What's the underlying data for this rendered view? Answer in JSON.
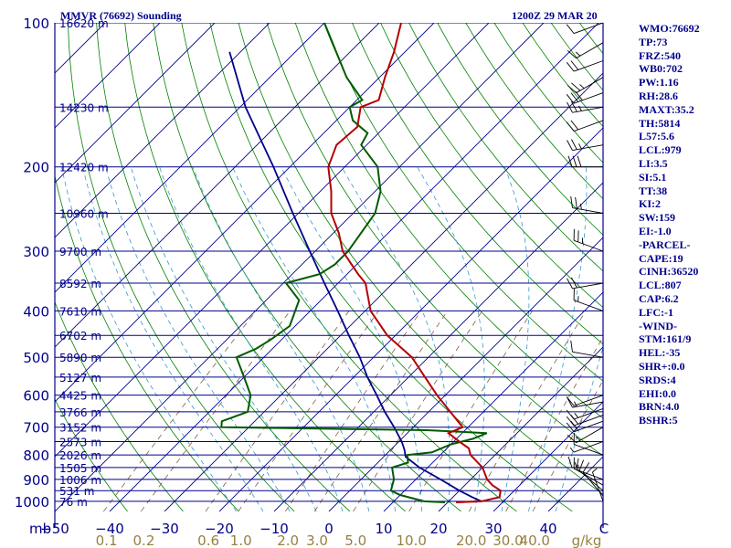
{
  "header": {
    "title": "MMVR (76692) Sounding",
    "datetime": "1200Z 29 MAR 20"
  },
  "indices": [
    "WMO:76692",
    "TP:73",
    "FRZ:540",
    "WB0:702",
    "PW:1.16",
    "RH:28.6",
    "MAXT:35.2",
    "TH:5814",
    "L57:5.6",
    "LCL:979",
    "LI:3.5",
    "SI:5.1",
    "TT:38",
    "KI:2",
    "SW:159",
    "EI:-1.0",
    "-PARCEL-",
    "CAPE:19",
    "CINH:36520",
    "LCL:807",
    "CAP:6.2",
    "LFC:-1",
    "-WIND-",
    "STM:161/9",
    "HEL:-35",
    "SHR+:0.0",
    "SRDS:4",
    "EHI:0.0",
    "BRN:4.0",
    "BSHR:5"
  ],
  "colors": {
    "isobar": "#00008b",
    "isotherm": "#00008b",
    "dry_adiabat": "#008000",
    "moist_adiabat": "#3399cc",
    "mixing_ratio": "#806040",
    "temperature": "#b40000",
    "dewpoint": "#005a00",
    "parcel": "#00008b",
    "label": "#00008b",
    "mixing_label": "#998040",
    "wind": "#000000"
  },
  "chart_data": {
    "type": "skew-t",
    "title": "MMVR (76692) Sounding",
    "pressure_axis": {
      "unit": "mb",
      "ticks": [
        100,
        200,
        300,
        400,
        500,
        600,
        700,
        800,
        900,
        1000
      ]
    },
    "temperature_axis": {
      "ticks": [
        -50,
        -40,
        -30,
        -20,
        -10,
        0,
        10,
        20,
        30,
        40
      ],
      "tick_labels": [
        "−50",
        "−40",
        "−30",
        "−20",
        "−10",
        "0",
        "10",
        "20",
        "30",
        "40"
      ],
      "end_label": "C",
      "range": [
        -50,
        50
      ]
    },
    "mixing_ratio_axis": {
      "values": [
        0.1,
        0.2,
        0.6,
        1.0,
        2.0,
        3.0,
        5.0,
        10.0,
        20.0,
        30.0,
        40.0
      ],
      "labels": [
        "0.1",
        "0.2",
        "0.6",
        "1.0",
        "2.0",
        "3.0",
        "5.0",
        "10.0",
        "20.0",
        "30.0",
        "40.0"
      ],
      "unit": "g/kg"
    },
    "height_levels": [
      {
        "p": 100,
        "label": "16620 m"
      },
      {
        "p": 150,
        "label": "14230 m"
      },
      {
        "p": 200,
        "label": "12420 m"
      },
      {
        "p": 250,
        "label": "10960 m"
      },
      {
        "p": 300,
        "label": "9700 m"
      },
      {
        "p": 350,
        "label": "8592 m"
      },
      {
        "p": 400,
        "label": "7610 m"
      },
      {
        "p": 450,
        "label": "6702 m"
      },
      {
        "p": 500,
        "label": "5890 m"
      },
      {
        "p": 550,
        "label": "5127 m"
      },
      {
        "p": 600,
        "label": "4425 m"
      },
      {
        "p": 650,
        "label": "3766 m"
      },
      {
        "p": 700,
        "label": "3152 m"
      },
      {
        "p": 750,
        "label": "2573 m"
      },
      {
        "p": 800,
        "label": "2026 m"
      },
      {
        "p": 850,
        "label": "1505 m"
      },
      {
        "p": 900,
        "label": "1006 m"
      },
      {
        "p": 950,
        "label": "531 m"
      },
      {
        "p": 1000,
        "label": "76 m"
      }
    ],
    "temperature_profile": {
      "p": [
        1005,
        1000,
        980,
        950,
        925,
        900,
        850,
        800,
        775,
        750,
        720,
        700,
        660,
        600,
        550,
        500,
        450,
        400,
        350,
        335,
        300,
        275,
        250,
        225,
        200,
        180,
        165,
        150,
        145,
        130,
        115,
        100
      ],
      "t": [
        21.5,
        26.0,
        28.5,
        27.5,
        25.0,
        23.0,
        20.0,
        15.5,
        14.0,
        11.0,
        7.5,
        9.0,
        5.0,
        -1.5,
        -7.0,
        -13.0,
        -21.5,
        -29.0,
        -35.0,
        -38.0,
        -45.0,
        -49.0,
        -54.0,
        -58.0,
        -63.0,
        -65.5,
        -65.0,
        -68.0,
        -66.0,
        -69.0,
        -72.0,
        -76.0
      ]
    },
    "dewpoint_profile": {
      "p": [
        1005,
        1000,
        970,
        950,
        900,
        850,
        830,
        800,
        790,
        760,
        740,
        720,
        710,
        700,
        680,
        650,
        600,
        550,
        500,
        480,
        460,
        430,
        380,
        350,
        335,
        320,
        300,
        250,
        225,
        200,
        180,
        170,
        160,
        150,
        145,
        130,
        100
      ],
      "t": [
        19.5,
        15.5,
        10.0,
        7.5,
        6.0,
        3.5,
        5.5,
        4.0,
        8.0,
        10.0,
        13.0,
        14.5,
        3.0,
        -35.0,
        -36.0,
        -33.0,
        -35.5,
        -40.0,
        -45.0,
        -43.0,
        -42.0,
        -41.0,
        -44.0,
        -49.5,
        -45.0,
        -44.0,
        -44.0,
        -46.0,
        -49.0,
        -54.0,
        -61.0,
        -62.0,
        -67.0,
        -70.0,
        -69.0,
        -76.0,
        -90.0
      ]
    },
    "parcel_profile": {
      "p": [
        1000,
        980,
        950,
        900,
        850,
        807,
        780,
        750,
        700,
        650,
        600,
        550,
        500,
        450,
        400,
        350,
        300,
        250,
        200,
        150,
        115
      ],
      "t": [
        26.0,
        23.5,
        20.0,
        14.5,
        8.5,
        4.0,
        2.5,
        0.5,
        -3.5,
        -8.0,
        -12.5,
        -17.5,
        -22.5,
        -28.5,
        -35.0,
        -42.5,
        -51.0,
        -61.0,
        -73.0,
        -89.0,
        -102.0
      ]
    },
    "wind_barbs": [
      {
        "p": 1000,
        "dir": 340,
        "spd": 5
      },
      {
        "p": 975,
        "dir": 320,
        "spd": 10
      },
      {
        "p": 950,
        "dir": 310,
        "spd": 10
      },
      {
        "p": 925,
        "dir": 300,
        "spd": 10
      },
      {
        "p": 900,
        "dir": 290,
        "spd": 15
      },
      {
        "p": 850,
        "dir": 270,
        "spd": 15
      },
      {
        "p": 800,
        "dir": 290,
        "spd": 10
      },
      {
        "p": 750,
        "dir": 250,
        "spd": 5
      },
      {
        "p": 700,
        "dir": 240,
        "spd": 15
      },
      {
        "p": 680,
        "dir": 250,
        "spd": 20
      },
      {
        "p": 660,
        "dir": 250,
        "spd": 20
      },
      {
        "p": 640,
        "dir": 250,
        "spd": 15
      },
      {
        "p": 620,
        "dir": 260,
        "spd": 15
      },
      {
        "p": 600,
        "dir": 250,
        "spd": 10
      },
      {
        "p": 500,
        "dir": 280,
        "spd": 10
      },
      {
        "p": 400,
        "dir": 290,
        "spd": 15
      },
      {
        "p": 350,
        "dir": 260,
        "spd": 20
      },
      {
        "p": 300,
        "dir": 290,
        "spd": 25
      },
      {
        "p": 250,
        "dir": 280,
        "spd": 25
      },
      {
        "p": 200,
        "dir": 270,
        "spd": 30
      },
      {
        "p": 180,
        "dir": 260,
        "spd": 25
      },
      {
        "p": 160,
        "dir": 250,
        "spd": 20
      },
      {
        "p": 150,
        "dir": 260,
        "spd": 25
      },
      {
        "p": 140,
        "dir": 250,
        "spd": 30
      },
      {
        "p": 130,
        "dir": 240,
        "spd": 25
      },
      {
        "p": 120,
        "dir": 250,
        "spd": 20
      },
      {
        "p": 110,
        "dir": 240,
        "spd": 15
      },
      {
        "p": 100,
        "dir": 250,
        "spd": 10
      }
    ]
  }
}
